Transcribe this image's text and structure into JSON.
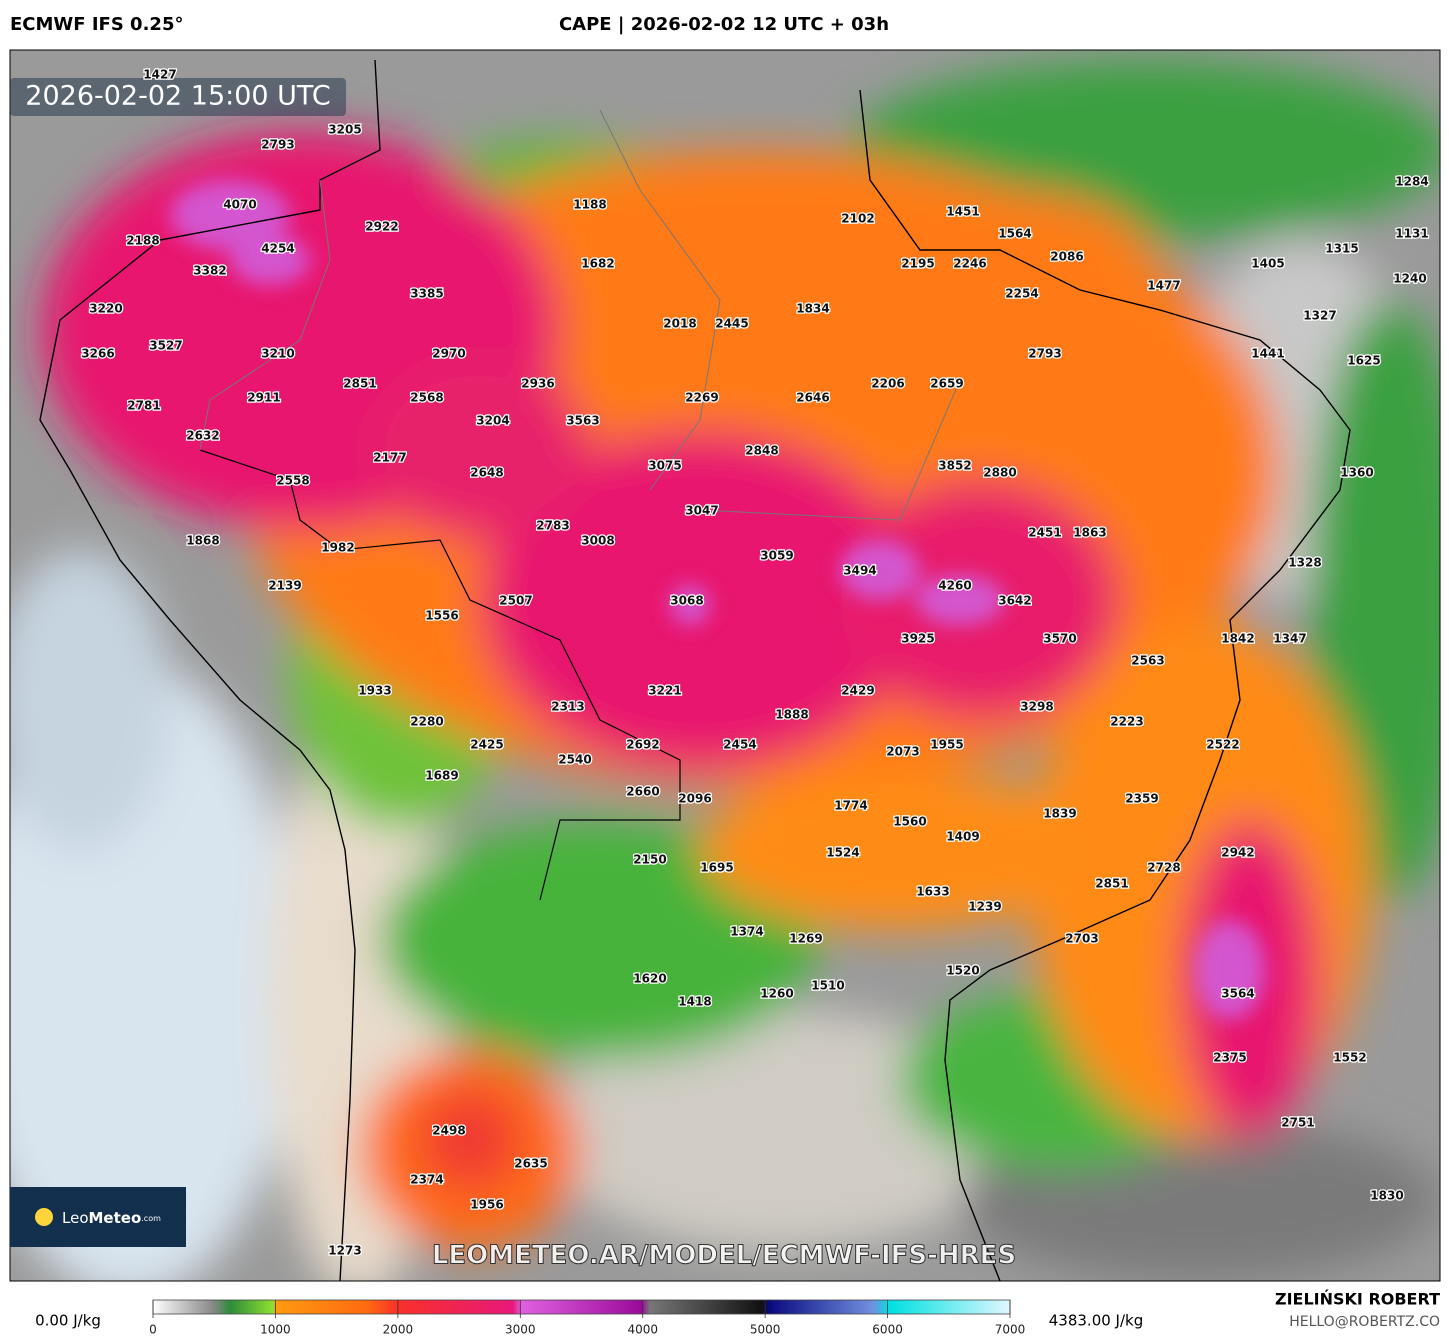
{
  "header": {
    "model": "ECMWF IFS 0.25°",
    "title": "CAPE | 2026-02-02 12 UTC + 03h"
  },
  "map": {
    "timestamp": "2026-02-02 15:00 UTC",
    "watermark": "LEOMETEO.AR/MODEL/ECMWF-IFS-HRES",
    "logo": {
      "name": "Leo",
      "bold": "Meteo",
      "suffix": ".com"
    },
    "values": [
      "1427",
      "3205",
      "2793",
      "4070",
      "2922",
      "1188",
      "2102",
      "1451",
      "1284",
      "2188",
      "4254",
      "1682",
      "2195",
      "2246",
      "1564",
      "2086",
      "1315",
      "1131",
      "3382",
      "1405",
      "1240",
      "1477",
      "3385",
      "2254",
      "3220",
      "2018",
      "2445",
      "1834",
      "1327",
      "3266",
      "3527",
      "3210",
      "2970",
      "2793",
      "1441",
      "1625",
      "2851",
      "2936",
      "2206",
      "2659",
      "2911",
      "2568",
      "2269",
      "2646",
      "2781",
      "3204",
      "3563",
      "2632",
      "2177",
      "2848",
      "3075",
      "3852",
      "2880",
      "1360",
      "2648",
      "2558",
      "3047",
      "2783",
      "3008",
      "2451",
      "1863",
      "1868",
      "1982",
      "3059",
      "1328",
      "3494",
      "2139",
      "4260",
      "3068",
      "2507",
      "3642",
      "1556",
      "3925",
      "3570",
      "1842",
      "1347",
      "2563",
      "1933",
      "3221",
      "2429",
      "2313",
      "3298",
      "1888",
      "2223",
      "2280",
      "2692",
      "2454",
      "2425",
      "2073",
      "1955",
      "2522",
      "2540",
      "1689",
      "2660",
      "2096",
      "1774",
      "2359",
      "1839",
      "1560",
      "1409",
      "2942",
      "1524",
      "2150",
      "1695",
      "2728",
      "2851",
      "1633",
      "1239",
      "1374",
      "1269",
      "2703",
      "1520",
      "1620",
      "1510",
      "1260",
      "1418",
      "3564",
      "2375",
      "1552",
      "2751",
      "2498",
      "2635",
      "2374",
      "1830",
      "1956",
      "1273"
    ]
  },
  "legend": {
    "min_label": "0.00 J/kg",
    "max_label": "4383.00 J/kg",
    "ticks": [
      0,
      1000,
      2000,
      3000,
      4000,
      5000,
      6000,
      7000
    ]
  },
  "footer": {
    "author": "ZIELIŃSKI ROBERT",
    "email": "HELLO@ROBERTZ.CO"
  }
}
